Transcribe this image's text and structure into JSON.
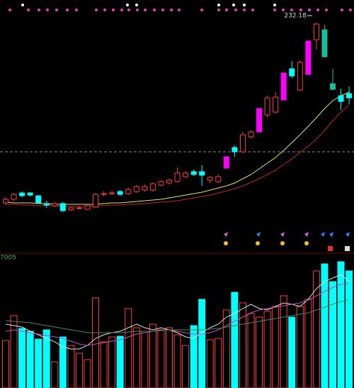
{
  "chart_data": [
    {
      "type": "candlestick",
      "annotation": "232.18",
      "annotation_index": 38,
      "categories": [
        null,
        null,
        null,
        null,
        null,
        null,
        null,
        null,
        null,
        null,
        null,
        null,
        null,
        null,
        null,
        null,
        null,
        null,
        null,
        null,
        null,
        null,
        null,
        null,
        null,
        null,
        null,
        null,
        null,
        null,
        null,
        null,
        null,
        null,
        null,
        null,
        null,
        null,
        null,
        null,
        null,
        null,
        null
      ],
      "open": [
        105.18,
        107.68,
        112.18,
        112.18,
        110.18,
        104.68,
        103.18,
        104.68,
        100.18,
        101.68,
        100.68,
        102.18,
        111.68,
        112.18,
        113.18,
        111.68,
        113.18,
        114.18,
        114.18,
        117.68,
        119.18,
        120.18,
        123.68,
        127.18,
        127.18,
        121.18,
        120.18,
        129.68,
        144.18,
        141.18,
        151.68,
        155.18,
        167.18,
        169.18,
        177.68,
        199.68,
        184.68,
        195.68,
        220.18,
        227.18,
        189.18,
        180.68,
        182.18
      ],
      "high": [
        109.18,
        112.18,
        113.18,
        112.68,
        110.68,
        106.68,
        105.68,
        105.68,
        102.18,
        102.68,
        103.68,
        112.18,
        113.18,
        113.68,
        114.18,
        115.68,
        117.68,
        118.18,
        119.68,
        121.18,
        122.18,
        130.18,
        127.68,
        128.68,
        131.68,
        124.18,
        125.18,
        138.18,
        145.68,
        155.18,
        156.18,
        171.68,
        180.68,
        183.18,
        196.68,
        205.18,
        205.68,
        219.18,
        232.18,
        230.68,
        199.68,
        185.68,
        187.18
      ],
      "low": [
        103.68,
        106.68,
        109.18,
        109.68,
        104.68,
        101.68,
        102.18,
        98.68,
        99.68,
        100.68,
        100.18,
        101.68,
        109.68,
        110.68,
        110.18,
        110.68,
        112.18,
        113.18,
        113.18,
        117.18,
        118.18,
        119.68,
        122.68,
        124.18,
        117.18,
        119.18,
        119.18,
        129.18,
        137.68,
        140.18,
        150.68,
        155.18,
        165.68,
        168.18,
        177.68,
        193.18,
        184.18,
        195.68,
        213.18,
        207.68,
        184.68,
        170.68,
        174.68
      ],
      "close": [
        107.68,
        111.18,
        110.18,
        110.68,
        105.18,
        103.68,
        104.68,
        99.68,
        101.68,
        101.68,
        103.18,
        111.18,
        111.68,
        112.18,
        111.18,
        114.68,
        116.68,
        116.68,
        118.68,
        120.18,
        121.18,
        126.18,
        126.18,
        125.18,
        124.68,
        123.18,
        123.68,
        137.68,
        141.18,
        153.18,
        155.18,
        171.68,
        179.18,
        179.68,
        196.68,
        194.68,
        204.18,
        219.18,
        231.18,
        208.18,
        185.18,
        176.68,
        179.18
      ],
      "up_color": "#ff3c3c",
      "colors": [
        "#ff3c3c",
        "#ff3c3c",
        "#00ffff",
        "#00ffff",
        "#00ffff",
        "#00ffff",
        "#ff3c3c",
        "#00ffff",
        "#ff3c3c",
        "#ff3c3c",
        "#ff3c3c",
        "#ff3c3c",
        "#ff3c3c",
        "#ff3c3c",
        "#00ffff",
        "#ff3c3c",
        "#ff3c3c",
        "#ff3c3c",
        "#ff3c3c",
        "#ff3c3c",
        "#ff3c3c",
        "#ff3c3c",
        "#ff3c3c",
        "#00ffff",
        "#00ffff",
        "#ff3c3c",
        "#ff3c3c",
        "#ff00ff",
        "#00ffff",
        "#ff3c3c",
        "#ff3c3c",
        "#ff00ff",
        "#ff3c3c",
        "#ff3c3c",
        "#ff00ff",
        "#00ffff",
        "#ff3c3c",
        "#ff00ff",
        "#ff3c3c",
        "#1abc9c",
        "#1abc9c",
        "#00ffff",
        "#00ffff"
      ],
      "ylim": [
        73.18,
        248.18
      ],
      "reference_line": 141.18,
      "lines": [
        {
          "color": "#e6e64c",
          "values": [
            105.68,
            105.18,
            105.18,
            105.18,
            104.68,
            104.68,
            104.18,
            104.18,
            104.18,
            104.18,
            104.18,
            104.18,
            104.68,
            105.18,
            105.18,
            105.68,
            106.18,
            106.68,
            107.18,
            107.68,
            108.68,
            109.68,
            110.68,
            111.68,
            112.68,
            114.18,
            115.68,
            117.18,
            119.18,
            122.18,
            125.18,
            129.18,
            133.18,
            137.18,
            142.18,
            147.68,
            153.18,
            159.18,
            165.18,
            171.68,
            177.18,
            180.68,
            183.18
          ]
        },
        {
          "color": "#c02626",
          "values": [
            104.18,
            104.18,
            103.68,
            103.68,
            103.18,
            103.18,
            103.18,
            102.68,
            102.68,
            102.68,
            102.68,
            103.18,
            103.18,
            103.68,
            103.68,
            104.18,
            104.18,
            104.68,
            105.18,
            105.68,
            106.18,
            106.68,
            107.68,
            108.68,
            109.68,
            110.68,
            112.18,
            113.68,
            115.18,
            117.18,
            119.68,
            122.18,
            125.18,
            128.18,
            132.18,
            136.18,
            140.68,
            145.18,
            150.18,
            156.18,
            163.18,
            169.18,
            174.18
          ]
        }
      ]
    },
    {
      "type": "bar",
      "label": "7005",
      "categories": [
        null,
        null,
        null,
        null,
        null,
        null,
        null,
        null,
        null,
        null,
        null,
        null,
        null,
        null,
        null,
        null,
        null,
        null,
        null,
        null,
        null,
        null,
        null,
        null,
        null,
        null,
        null,
        null,
        null,
        null,
        null,
        null,
        null,
        null,
        null,
        null,
        null,
        null,
        null,
        null,
        null,
        null,
        null
      ],
      "values": [
        67,
        102,
        84,
        80,
        69,
        82,
        37,
        72,
        60,
        49,
        40,
        127,
        65,
        72,
        73,
        112,
        85,
        80,
        90,
        82,
        85,
        75,
        60,
        88,
        125,
        68,
        70,
        110,
        135,
        120,
        105,
        100,
        108,
        115,
        130,
        100,
        115,
        125,
        165,
        175,
        150,
        178,
        165
      ],
      "up_color": "#ff3c3c",
      "colors": [
        "#ff3c3c",
        "#ff3c3c",
        "#00ffff",
        "#00ffff",
        "#00ffff",
        "#00ffff",
        "#ff3c3c",
        "#00ffff",
        "#ff3c3c",
        "#ff3c3c",
        "#ff3c3c",
        "#ff3c3c",
        "#ff3c3c",
        "#ff3c3c",
        "#00ffff",
        "#ff3c3c",
        "#ff3c3c",
        "#ff3c3c",
        "#ff3c3c",
        "#ff3c3c",
        "#ff3c3c",
        "#ff3c3c",
        "#ff3c3c",
        "#00ffff",
        "#00ffff",
        "#ff3c3c",
        "#ff3c3c",
        "#ff3c3c",
        "#00ffff",
        "#ff3c3c",
        "#ff3c3c",
        "#ff3c3c",
        "#ff3c3c",
        "#ff3c3c",
        "#ff3c3c",
        "#00ffff",
        "#ff3c3c",
        "#ff3c3c",
        "#ff3c3c",
        "#00ffff",
        "#00ffff",
        "#00ffff",
        "#00ffff"
      ],
      "ylim": [
        0,
        180
      ],
      "lines": [
        {
          "color": "#dddddd",
          "values": [
            90,
            88,
            86,
            80,
            75,
            70,
            65,
            58,
            55,
            55,
            60,
            70,
            75,
            78,
            80,
            85,
            90,
            85,
            82,
            85,
            82,
            78,
            72,
            70,
            78,
            85,
            90,
            100,
            105,
            112,
            118,
            112,
            110,
            115,
            120,
            118,
            115,
            125,
            140,
            150,
            155,
            160,
            150
          ]
        },
        {
          "color": "#c050c0",
          "values": [
            80,
            82,
            80,
            78,
            76,
            74,
            72,
            70,
            66,
            62,
            60,
            62,
            64,
            66,
            68,
            72,
            76,
            78,
            80,
            82,
            82,
            80,
            78,
            76,
            76,
            78,
            82,
            88,
            94,
            100,
            106,
            110,
            112,
            114,
            116,
            118,
            120,
            124,
            130,
            136,
            142,
            146,
            148
          ]
        },
        {
          "color": "#4c8a4c",
          "values": [
            95,
            94,
            93,
            92,
            90,
            88,
            86,
            84,
            82,
            80,
            78,
            78,
            78,
            78,
            78,
            79,
            80,
            80,
            80,
            81,
            82,
            82,
            82,
            82,
            82,
            83,
            84,
            86,
            88,
            90,
            92,
            94,
            96,
            98,
            100,
            102,
            104,
            106,
            110,
            114,
            118,
            122,
            124
          ]
        }
      ]
    }
  ]
}
